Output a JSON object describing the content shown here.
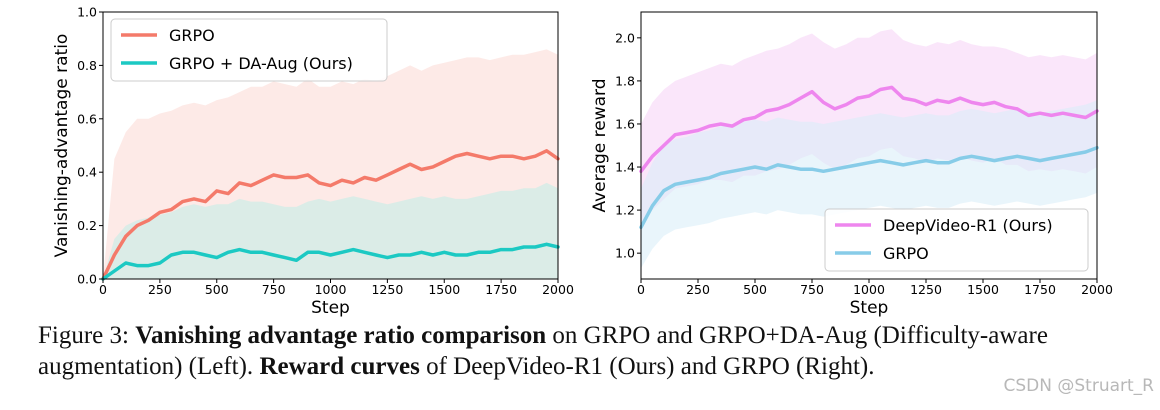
{
  "chart_data": [
    {
      "type": "line",
      "ylabel": "Vanishing-advantage ratio",
      "xlabel": "Step",
      "xlim": [
        0,
        2000
      ],
      "ylim": [
        0.0,
        1.0
      ],
      "xticks": [
        0,
        250,
        500,
        750,
        1000,
        1250,
        1500,
        1750,
        2000
      ],
      "yticks": [
        0.0,
        0.2,
        0.4,
        0.6,
        0.8,
        1.0
      ],
      "ytick_labels": [
        "0.0",
        "0.2",
        "0.4",
        "0.6",
        "0.8",
        "1.0"
      ],
      "legend_position": "top-left",
      "series": [
        {
          "name": "GRPO",
          "color": "#f47a6a",
          "band_color": "#fcd9d3",
          "x": [
            0,
            50,
            100,
            150,
            200,
            250,
            300,
            350,
            400,
            450,
            500,
            550,
            600,
            650,
            700,
            750,
            800,
            850,
            900,
            950,
            1000,
            1050,
            1100,
            1150,
            1200,
            1250,
            1300,
            1350,
            1400,
            1450,
            1500,
            1550,
            1600,
            1650,
            1700,
            1750,
            1800,
            1850,
            1900,
            1950,
            2000
          ],
          "values": [
            0.0,
            0.09,
            0.16,
            0.2,
            0.22,
            0.25,
            0.26,
            0.29,
            0.3,
            0.29,
            0.33,
            0.32,
            0.36,
            0.35,
            0.37,
            0.39,
            0.38,
            0.38,
            0.39,
            0.36,
            0.35,
            0.37,
            0.36,
            0.38,
            0.37,
            0.39,
            0.41,
            0.43,
            0.41,
            0.42,
            0.44,
            0.46,
            0.47,
            0.46,
            0.45,
            0.46,
            0.46,
            0.45,
            0.46,
            0.48,
            0.45
          ],
          "band_upper": [
            0.0,
            0.45,
            0.55,
            0.6,
            0.6,
            0.62,
            0.63,
            0.65,
            0.66,
            0.65,
            0.67,
            0.68,
            0.7,
            0.72,
            0.72,
            0.74,
            0.73,
            0.72,
            0.75,
            0.72,
            0.72,
            0.74,
            0.73,
            0.75,
            0.74,
            0.76,
            0.78,
            0.8,
            0.78,
            0.8,
            0.81,
            0.82,
            0.83,
            0.83,
            0.82,
            0.83,
            0.84,
            0.84,
            0.85,
            0.86,
            0.84
          ],
          "band_lower": [
            0.0,
            0.0,
            0.0,
            0.0,
            0.0,
            0.0,
            0.0,
            0.0,
            0.0,
            0.0,
            0.0,
            0.0,
            0.0,
            0.0,
            0.0,
            0.0,
            0.0,
            0.0,
            0.0,
            0.0,
            0.0,
            0.0,
            0.0,
            0.0,
            0.0,
            0.0,
            0.0,
            0.0,
            0.0,
            0.0,
            0.0,
            0.0,
            0.0,
            0.0,
            0.0,
            0.0,
            0.0,
            0.0,
            0.0,
            0.0,
            0.0
          ]
        },
        {
          "name": "GRPO + DA-Aug (Ours)",
          "color": "#1cc9c3",
          "band_color": "#bfece8",
          "x": [
            0,
            50,
            100,
            150,
            200,
            250,
            300,
            350,
            400,
            450,
            500,
            550,
            600,
            650,
            700,
            750,
            800,
            850,
            900,
            950,
            1000,
            1050,
            1100,
            1150,
            1200,
            1250,
            1300,
            1350,
            1400,
            1450,
            1500,
            1550,
            1600,
            1650,
            1700,
            1750,
            1800,
            1850,
            1900,
            1950,
            2000
          ],
          "values": [
            0.0,
            0.03,
            0.06,
            0.05,
            0.05,
            0.06,
            0.09,
            0.1,
            0.1,
            0.09,
            0.08,
            0.1,
            0.11,
            0.1,
            0.1,
            0.09,
            0.08,
            0.07,
            0.1,
            0.1,
            0.09,
            0.1,
            0.11,
            0.1,
            0.09,
            0.08,
            0.09,
            0.09,
            0.1,
            0.09,
            0.1,
            0.09,
            0.09,
            0.1,
            0.1,
            0.11,
            0.11,
            0.12,
            0.12,
            0.13,
            0.12
          ],
          "band_upper": [
            0.0,
            0.15,
            0.2,
            0.22,
            0.23,
            0.24,
            0.25,
            0.27,
            0.28,
            0.27,
            0.28,
            0.28,
            0.3,
            0.29,
            0.29,
            0.28,
            0.27,
            0.27,
            0.29,
            0.3,
            0.29,
            0.3,
            0.31,
            0.3,
            0.29,
            0.28,
            0.29,
            0.3,
            0.31,
            0.3,
            0.31,
            0.3,
            0.3,
            0.31,
            0.32,
            0.33,
            0.33,
            0.34,
            0.34,
            0.36,
            0.34
          ],
          "band_lower": [
            0.0,
            0.0,
            0.0,
            0.0,
            0.0,
            0.0,
            0.0,
            0.0,
            0.0,
            0.0,
            0.0,
            0.0,
            0.0,
            0.0,
            0.0,
            0.0,
            0.0,
            0.0,
            0.0,
            0.0,
            0.0,
            0.0,
            0.0,
            0.0,
            0.0,
            0.0,
            0.0,
            0.0,
            0.0,
            0.0,
            0.0,
            0.0,
            0.0,
            0.0,
            0.0,
            0.0,
            0.0,
            0.0,
            0.0,
            0.0,
            0.0
          ]
        }
      ]
    },
    {
      "type": "line",
      "ylabel": "Average reward",
      "xlabel": "Step",
      "xlim": [
        0,
        2000
      ],
      "ylim": [
        0.88,
        2.12
      ],
      "xticks": [
        0,
        250,
        500,
        750,
        1000,
        1250,
        1500,
        1750,
        2000
      ],
      "yticks": [
        1.0,
        1.2,
        1.4,
        1.6,
        1.8,
        2.0
      ],
      "ytick_labels": [
        "1.0",
        "1.2",
        "1.4",
        "1.6",
        "1.8",
        "2.0"
      ],
      "legend_position": "bottom-right",
      "series": [
        {
          "name": "DeepVideo-R1 (Ours)",
          "color": "#ee86ee",
          "band_color": "#f6d2f6",
          "x": [
            0,
            50,
            100,
            150,
            200,
            250,
            300,
            350,
            400,
            450,
            500,
            550,
            600,
            650,
            700,
            750,
            800,
            850,
            900,
            950,
            1000,
            1050,
            1100,
            1150,
            1200,
            1250,
            1300,
            1350,
            1400,
            1450,
            1500,
            1550,
            1600,
            1650,
            1700,
            1750,
            1800,
            1850,
            1900,
            1950,
            2000
          ],
          "values": [
            1.38,
            1.45,
            1.5,
            1.55,
            1.56,
            1.57,
            1.59,
            1.6,
            1.59,
            1.62,
            1.63,
            1.66,
            1.67,
            1.69,
            1.72,
            1.75,
            1.7,
            1.67,
            1.69,
            1.72,
            1.73,
            1.76,
            1.77,
            1.72,
            1.71,
            1.69,
            1.71,
            1.7,
            1.72,
            1.7,
            1.69,
            1.7,
            1.68,
            1.67,
            1.64,
            1.65,
            1.64,
            1.65,
            1.64,
            1.63,
            1.66
          ],
          "band_upper": [
            1.6,
            1.7,
            1.76,
            1.8,
            1.82,
            1.84,
            1.86,
            1.88,
            1.87,
            1.9,
            1.92,
            1.94,
            1.95,
            1.97,
            2.0,
            2.02,
            1.98,
            1.95,
            1.97,
            2.0,
            2.0,
            2.03,
            2.04,
            1.99,
            1.97,
            1.96,
            1.98,
            1.97,
            1.99,
            1.97,
            1.96,
            1.96,
            1.95,
            1.93,
            1.91,
            1.92,
            1.91,
            1.92,
            1.91,
            1.9,
            1.93
          ],
          "band_lower": [
            1.12,
            1.2,
            1.25,
            1.3,
            1.31,
            1.32,
            1.34,
            1.34,
            1.33,
            1.36,
            1.36,
            1.38,
            1.39,
            1.41,
            1.44,
            1.46,
            1.42,
            1.39,
            1.41,
            1.44,
            1.45,
            1.48,
            1.49,
            1.45,
            1.44,
            1.42,
            1.44,
            1.43,
            1.45,
            1.43,
            1.42,
            1.44,
            1.41,
            1.41,
            1.38,
            1.39,
            1.38,
            1.39,
            1.38,
            1.37,
            1.4
          ]
        },
        {
          "name": "GRPO",
          "color": "#87cce8",
          "band_color": "#d7ecf8",
          "x": [
            0,
            50,
            100,
            150,
            200,
            250,
            300,
            350,
            400,
            450,
            500,
            550,
            600,
            650,
            700,
            750,
            800,
            850,
            900,
            950,
            1000,
            1050,
            1100,
            1150,
            1200,
            1250,
            1300,
            1350,
            1400,
            1450,
            1500,
            1550,
            1600,
            1650,
            1700,
            1750,
            1800,
            1850,
            1900,
            1950,
            2000
          ],
          "values": [
            1.12,
            1.22,
            1.29,
            1.32,
            1.33,
            1.34,
            1.35,
            1.37,
            1.38,
            1.39,
            1.4,
            1.39,
            1.41,
            1.4,
            1.39,
            1.39,
            1.38,
            1.39,
            1.4,
            1.41,
            1.42,
            1.43,
            1.42,
            1.41,
            1.42,
            1.43,
            1.42,
            1.42,
            1.44,
            1.45,
            1.44,
            1.43,
            1.44,
            1.45,
            1.44,
            1.43,
            1.44,
            1.45,
            1.46,
            1.47,
            1.49
          ],
          "band_upper": [
            1.3,
            1.42,
            1.5,
            1.53,
            1.54,
            1.56,
            1.57,
            1.59,
            1.6,
            1.61,
            1.62,
            1.61,
            1.63,
            1.62,
            1.61,
            1.61,
            1.6,
            1.61,
            1.62,
            1.63,
            1.64,
            1.65,
            1.64,
            1.63,
            1.64,
            1.65,
            1.64,
            1.64,
            1.66,
            1.67,
            1.66,
            1.65,
            1.66,
            1.67,
            1.66,
            1.65,
            1.66,
            1.67,
            1.68,
            1.69,
            1.71
          ],
          "band_lower": [
            0.93,
            1.02,
            1.08,
            1.11,
            1.12,
            1.13,
            1.14,
            1.16,
            1.17,
            1.18,
            1.19,
            1.18,
            1.2,
            1.19,
            1.18,
            1.18,
            1.17,
            1.18,
            1.19,
            1.2,
            1.21,
            1.22,
            1.21,
            1.2,
            1.21,
            1.22,
            1.21,
            1.21,
            1.23,
            1.24,
            1.23,
            1.22,
            1.23,
            1.24,
            1.23,
            1.22,
            1.23,
            1.24,
            1.25,
            1.26,
            1.28
          ]
        }
      ]
    }
  ],
  "caption": {
    "figure_label": "Figure 3:",
    "bold_1": "Vanishing advantage ratio comparison",
    "text_1": " on GRPO and GRPO+DA-Aug (Difficulty-aware augmentation) (Left). ",
    "bold_2": "Reward curves",
    "text_2": " of DeepVideo-R1 (Ours) and GRPO (Right)."
  },
  "watermark": "CSDN @Struart_R"
}
